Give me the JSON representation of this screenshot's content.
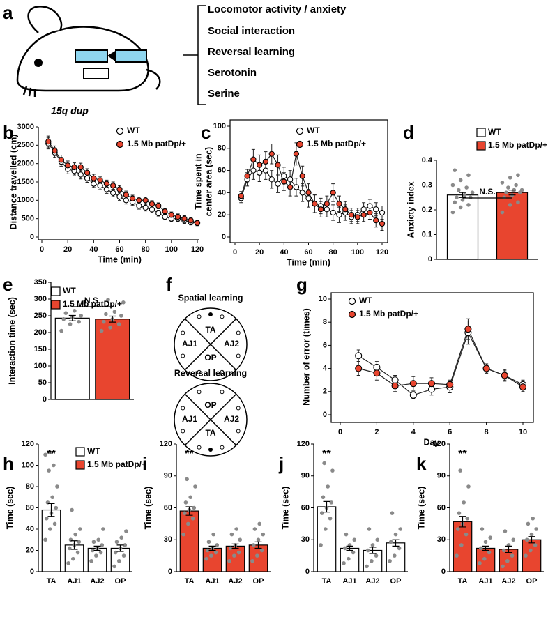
{
  "figure_a": {
    "panel": "a",
    "caption": "15q dup",
    "items": [
      "Locomotor activity / anxiety",
      "Social interaction",
      "Reversal learning",
      "Serotonin",
      "Serine"
    ]
  },
  "figure_f": {
    "panel": "f",
    "diagrams": [
      {
        "title": "Spatial learning",
        "top": "TA",
        "left": "AJ1",
        "right": "AJ2",
        "bottom": "OP"
      },
      {
        "title": "Reversal learning",
        "top": "OP",
        "left": "AJ1",
        "right": "AJ2",
        "bottom": "TA"
      }
    ]
  },
  "chart_data": [
    {
      "panel": "b",
      "type": "line",
      "xlabel": "Time (min)",
      "ylabel": [
        "Distance travelled (cm)"
      ],
      "x": [
        5,
        10,
        15,
        20,
        25,
        30,
        35,
        40,
        45,
        50,
        55,
        60,
        65,
        70,
        75,
        80,
        85,
        90,
        95,
        100,
        105,
        110,
        115,
        120
      ],
      "xlim": [
        0,
        120
      ],
      "xticks": [
        0,
        20,
        40,
        60,
        80,
        100,
        120
      ],
      "ylim": [
        0,
        3000
      ],
      "yticks": [
        0,
        500,
        1000,
        1500,
        2000,
        2500,
        3000
      ],
      "series": [
        {
          "name": "WT",
          "color": "#ffffff",
          "values": [
            2550,
            2300,
            2050,
            1850,
            1800,
            1700,
            1600,
            1450,
            1400,
            1300,
            1200,
            1100,
            1000,
            950,
            850,
            800,
            750,
            650,
            550,
            500,
            500,
            450,
            400,
            380
          ],
          "errors": [
            150,
            130,
            120,
            130,
            110,
            120,
            110,
            100,
            110,
            110,
            100,
            100,
            100,
            90,
            90,
            90,
            90,
            80,
            80,
            80,
            80,
            80,
            70,
            70
          ]
        },
        {
          "name": "1.5 Mb patDp/+",
          "color": "#e8452f",
          "values": [
            2600,
            2350,
            2100,
            1950,
            1900,
            1900,
            1750,
            1600,
            1550,
            1450,
            1400,
            1300,
            1150,
            1050,
            1000,
            1000,
            900,
            850,
            700,
            600,
            550,
            500,
            450,
            380
          ],
          "errors": [
            150,
            130,
            130,
            120,
            120,
            110,
            110,
            110,
            100,
            100,
            100,
            100,
            100,
            90,
            90,
            90,
            90,
            80,
            80,
            80,
            80,
            80,
            70,
            70
          ]
        }
      ]
    },
    {
      "panel": "c",
      "type": "line",
      "frame": true,
      "xlabel": "Time (min)",
      "ylabel": [
        "Time spent in",
        "center area (sec)"
      ],
      "x": [
        5,
        10,
        15,
        20,
        25,
        30,
        35,
        40,
        45,
        50,
        55,
        60,
        65,
        70,
        75,
        80,
        85,
        90,
        95,
        100,
        105,
        110,
        115,
        120
      ],
      "xlim": [
        0,
        120
      ],
      "xticks": [
        0,
        20,
        40,
        60,
        80,
        100,
        120
      ],
      "ylim": [
        0,
        100
      ],
      "yticks": [
        0,
        20,
        40,
        60,
        80,
        100
      ],
      "series": [
        {
          "name": "WT",
          "color": "#ffffff",
          "values": [
            35,
            52,
            60,
            58,
            60,
            52,
            48,
            55,
            52,
            45,
            40,
            35,
            30,
            28,
            25,
            22,
            20,
            22,
            18,
            20,
            25,
            28,
            25,
            22
          ],
          "errors": [
            4,
            6,
            8,
            8,
            8,
            8,
            8,
            8,
            8,
            8,
            8,
            8,
            8,
            7,
            7,
            7,
            7,
            7,
            6,
            6,
            6,
            6,
            6,
            6
          ]
        },
        {
          "name": "1.5 Mb patDp/+",
          "color": "#e8452f",
          "values": [
            37,
            55,
            70,
            65,
            68,
            75,
            65,
            50,
            45,
            75,
            55,
            40,
            30,
            25,
            30,
            40,
            30,
            25,
            20,
            18,
            20,
            22,
            15,
            12
          ],
          "errors": [
            4,
            6,
            9,
            9,
            9,
            9,
            9,
            8,
            8,
            10,
            9,
            8,
            8,
            7,
            7,
            8,
            7,
            7,
            6,
            6,
            6,
            6,
            6,
            6
          ]
        }
      ]
    },
    {
      "panel": "d",
      "type": "bar",
      "ylabel": [
        "Anxiety index"
      ],
      "annotation": "N.S.",
      "ylim": [
        0,
        0.4
      ],
      "yticks": [
        0,
        0.1,
        0.2,
        0.3,
        0.4
      ],
      "series": [
        {
          "name": "WT",
          "color": "#ffffff",
          "values": [
            0.26
          ],
          "errors": [
            0.01
          ],
          "points": [
            [
              0.19,
              0.21,
              0.22,
              0.23,
              0.24,
              0.25,
              0.25,
              0.26,
              0.27,
              0.28,
              0.29,
              0.3,
              0.32,
              0.34,
              0.36
            ]
          ]
        },
        {
          "name": "1.5 Mb patDp/+",
          "color": "#e8452f",
          "values": [
            0.27
          ],
          "errors": [
            0.01
          ],
          "points": [
            [
              0.19,
              0.22,
              0.23,
              0.25,
              0.26,
              0.27,
              0.27,
              0.28,
              0.28,
              0.29,
              0.3,
              0.31,
              0.33,
              0.34
            ]
          ]
        }
      ]
    },
    {
      "panel": "e",
      "type": "bar",
      "ylabel": [
        "Interaction time (sec)"
      ],
      "annotation": "N.S.",
      "ylim": [
        0,
        350
      ],
      "yticks": [
        0,
        50,
        100,
        150,
        200,
        250,
        300,
        350
      ],
      "series": [
        {
          "name": "WT",
          "color": "#ffffff",
          "values": [
            243
          ],
          "errors": [
            8
          ],
          "points": [
            [
              205,
              225,
              232,
              240,
              245,
              250,
              258,
              265,
              290
            ]
          ]
        },
        {
          "name": "1.5 Mb patDp/+",
          "color": "#e8452f",
          "values": [
            240
          ],
          "errors": [
            9
          ],
          "points": [
            [
              205,
              215,
              225,
              232,
              240,
              250,
              255,
              262,
              290,
              298
            ]
          ]
        }
      ]
    },
    {
      "panel": "g",
      "type": "line",
      "frame": true,
      "xlabel": "Day",
      "ylabel": [
        "Number of error (times)"
      ],
      "x": [
        1,
        2,
        3,
        4,
        5,
        6,
        7,
        8,
        9,
        10
      ],
      "xlim": [
        0,
        10
      ],
      "xticks": [
        0,
        2,
        4,
        6,
        8,
        10
      ],
      "ylim": [
        0,
        10
      ],
      "yticks": [
        0,
        2,
        4,
        6,
        8,
        10
      ],
      "series": [
        {
          "name": "WT",
          "color": "#ffffff",
          "values": [
            5.1,
            4.1,
            3.0,
            1.7,
            2.2,
            2.4,
            7.1,
            4.0,
            3.4,
            2.6
          ],
          "errors": [
            0.5,
            0.5,
            0.4,
            0.3,
            0.5,
            0.5,
            1.0,
            0.4,
            0.5,
            0.4
          ]
        },
        {
          "name": "1.5 Mb patDp/+",
          "color": "#e8452f",
          "values": [
            4.0,
            3.6,
            2.5,
            2.7,
            2.7,
            2.6,
            7.4,
            4.0,
            3.4,
            2.4
          ],
          "errors": [
            0.6,
            0.6,
            0.5,
            0.6,
            0.5,
            0.4,
            0.9,
            0.4,
            0.4,
            0.4
          ]
        }
      ]
    },
    {
      "panel": "h",
      "type": "bar",
      "ylabel": [
        "Time (sec)"
      ],
      "annotation": "**",
      "categories": [
        "TA",
        "AJ1",
        "AJ2",
        "OP"
      ],
      "ylim": [
        0,
        120
      ],
      "yticks": [
        0,
        20,
        40,
        60,
        80,
        100,
        120
      ],
      "series": [
        {
          "name": "WT",
          "color": "#ffffff",
          "values": [
            58,
            25,
            22,
            22
          ],
          "errors": [
            6,
            4,
            2,
            3
          ],
          "points": [
            [
              30,
              40,
              45,
              50,
              55,
              60,
              65,
              70,
              80,
              95,
              100,
              110,
              112
            ],
            [
              8,
              12,
              18,
              22,
              25,
              28,
              30,
              35,
              40,
              58
            ],
            [
              10,
              15,
              18,
              20,
              22,
              25,
              28,
              30,
              40
            ],
            [
              5,
              10,
              15,
              18,
              22,
              25,
              28,
              32,
              38
            ]
          ]
        },
        {
          "name": "1.5 Mb patDp/+",
          "color": "#e8452f",
          "legend_only": true
        }
      ]
    },
    {
      "panel": "i",
      "type": "bar",
      "ylabel": [
        "Time (sec)"
      ],
      "annotation": "**",
      "categories": [
        "TA",
        "AJ1",
        "AJ2",
        "OP"
      ],
      "ylim": [
        0,
        120
      ],
      "yticks": [
        0,
        30,
        60,
        90,
        120
      ],
      "series": [
        {
          "color": "#e8452f",
          "values": [
            57,
            22,
            24,
            25
          ],
          "errors": [
            4,
            2,
            2,
            3
          ],
          "points": [
            [
              35,
              45,
              50,
              55,
              58,
              60,
              65,
              70,
              80,
              87
            ],
            [
              12,
              15,
              18,
              20,
              22,
              25,
              28,
              35
            ],
            [
              10,
              15,
              18,
              22,
              25,
              30,
              35,
              40
            ],
            [
              10,
              15,
              20,
              25,
              30,
              35,
              40,
              45
            ]
          ]
        }
      ]
    },
    {
      "panel": "j",
      "type": "bar",
      "ylabel": [
        "Time (sec)"
      ],
      "annotation": "**",
      "categories": [
        "TA",
        "AJ1",
        "AJ2",
        "OP"
      ],
      "ylim": [
        0,
        120
      ],
      "yticks": [
        0,
        30,
        60,
        90,
        120
      ],
      "series": [
        {
          "color": "#ffffff",
          "values": [
            61,
            22,
            20,
            27
          ],
          "errors": [
            5,
            2,
            3,
            3
          ],
          "points": [
            [
              25,
              40,
              50,
              55,
              60,
              65,
              70,
              80,
              95,
              102
            ],
            [
              8,
              12,
              18,
              22,
              25,
              30,
              35
            ],
            [
              5,
              10,
              15,
              20,
              25,
              30,
              40
            ],
            [
              10,
              15,
              22,
              28,
              35,
              40,
              55
            ]
          ]
        }
      ]
    },
    {
      "panel": "k",
      "type": "bar",
      "ylabel": [
        "Time (sec)"
      ],
      "annotation": "**",
      "categories": [
        "TA",
        "AJ1",
        "AJ2",
        "OP"
      ],
      "ylim": [
        0,
        120
      ],
      "yticks": [
        0,
        30,
        60,
        90,
        120
      ],
      "series": [
        {
          "color": "#e8452f",
          "values": [
            47,
            22,
            21,
            30
          ],
          "errors": [
            5,
            2,
            3,
            3
          ],
          "points": [
            [
              15,
              25,
              35,
              40,
              45,
              50,
              55,
              65,
              80,
              95
            ],
            [
              8,
              12,
              18,
              22,
              28,
              32,
              40
            ],
            [
              5,
              10,
              15,
              20,
              25,
              30,
              38
            ],
            [
              15,
              20,
              25,
              30,
              35,
              40,
              45,
              50
            ]
          ]
        }
      ]
    }
  ]
}
